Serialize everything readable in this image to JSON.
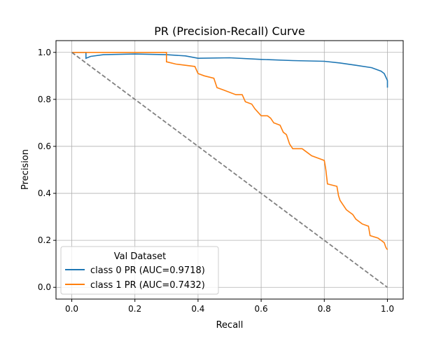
{
  "chart_data": {
    "type": "line",
    "title": "PR (Precision-Recall) Curve",
    "xlabel": "Recall",
    "ylabel": "Precision",
    "xlim": [
      -0.05,
      1.05
    ],
    "ylim": [
      -0.05,
      1.05
    ],
    "xticks": [
      "0.0",
      "0.2",
      "0.4",
      "0.6",
      "0.8",
      "1.0"
    ],
    "yticks": [
      "0.0",
      "0.2",
      "0.4",
      "0.6",
      "0.8",
      "1.0"
    ],
    "grid": true,
    "legend": {
      "title": "Val Dataset",
      "placement": "lower-left"
    },
    "series": [
      {
        "name": "class 0 PR (AUC=0.9718)",
        "color": "#1f77b4",
        "x": [
          0,
          0.045,
          0.045,
          0.06,
          0.1,
          0.2,
          0.3,
          0.36,
          0.4,
          0.5,
          0.6,
          0.7,
          0.8,
          0.85,
          0.9,
          0.95,
          0.98,
          0.99,
          0.995,
          1.0,
          1.0
        ],
        "y": [
          1.0,
          1.0,
          0.975,
          0.983,
          0.99,
          0.993,
          0.99,
          0.985,
          0.975,
          0.977,
          0.97,
          0.965,
          0.962,
          0.955,
          0.945,
          0.935,
          0.92,
          0.91,
          0.895,
          0.88,
          0.85
        ]
      },
      {
        "name": "class 1 PR (AUC=0.7432)",
        "color": "#ff7f0e",
        "x": [
          0,
          0.3,
          0.3,
          0.33,
          0.39,
          0.4,
          0.42,
          0.45,
          0.46,
          0.48,
          0.52,
          0.54,
          0.55,
          0.57,
          0.58,
          0.6,
          0.62,
          0.63,
          0.64,
          0.66,
          0.67,
          0.68,
          0.69,
          0.7,
          0.73,
          0.74,
          0.76,
          0.78,
          0.8,
          0.805,
          0.81,
          0.84,
          0.845,
          0.85,
          0.86,
          0.87,
          0.88,
          0.89,
          0.9,
          0.92,
          0.94,
          0.945,
          0.97,
          0.98,
          0.99,
          0.995,
          1.0
        ],
        "y": [
          1.0,
          1.0,
          0.96,
          0.95,
          0.94,
          0.91,
          0.9,
          0.89,
          0.85,
          0.84,
          0.82,
          0.82,
          0.79,
          0.78,
          0.76,
          0.73,
          0.73,
          0.72,
          0.7,
          0.69,
          0.66,
          0.65,
          0.61,
          0.59,
          0.59,
          0.58,
          0.56,
          0.55,
          0.54,
          0.5,
          0.44,
          0.43,
          0.39,
          0.37,
          0.35,
          0.33,
          0.32,
          0.31,
          0.29,
          0.27,
          0.26,
          0.22,
          0.21,
          0.2,
          0.19,
          0.17,
          0.16
        ]
      }
    ],
    "reference_line": {
      "x": [
        0,
        1
      ],
      "y": [
        1,
        0
      ],
      "color": "#808080",
      "style": "dashed"
    }
  }
}
